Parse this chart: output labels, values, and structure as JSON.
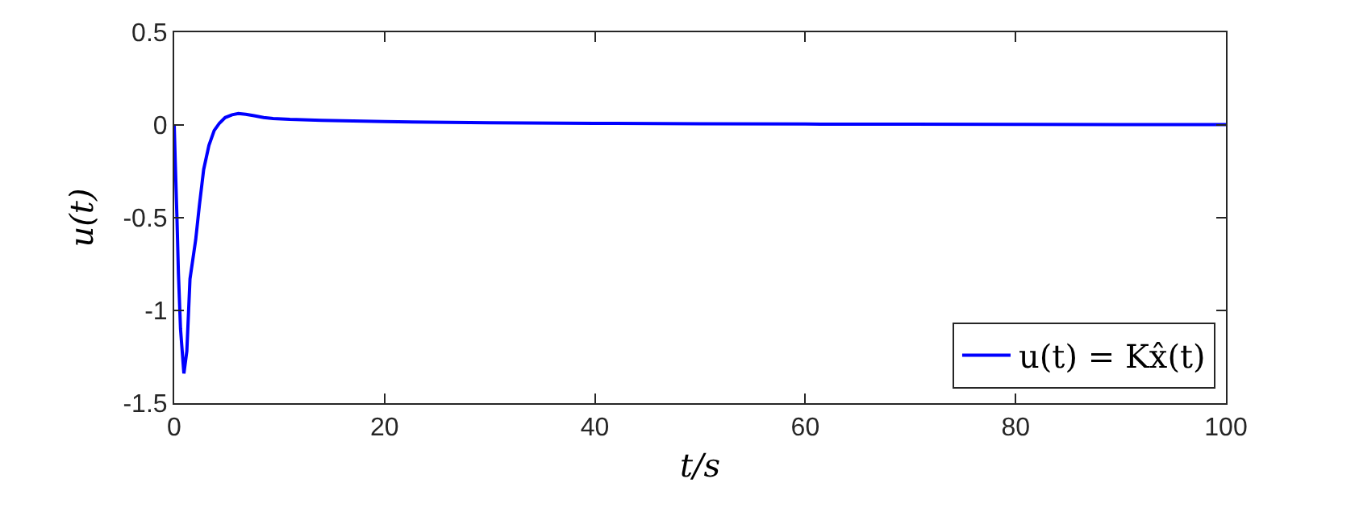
{
  "chart_data": {
    "type": "line",
    "xlabel": "t/s",
    "ylabel": "u(t)",
    "x": [
      0,
      0.1,
      0.26,
      0.4,
      0.6,
      0.92,
      1.2,
      1.5,
      2.04,
      2.4,
      2.8,
      3.3,
      3.8,
      4.3,
      4.84,
      5.5,
      6.1,
      6.8,
      7.6,
      8.5,
      9.4,
      11,
      14,
      20,
      30,
      40,
      50,
      60,
      70,
      80,
      90,
      100
    ],
    "series": [
      {
        "name": "u(t) = Kx̂(t)",
        "color": "#0000ff",
        "values": [
          0,
          -0.2,
          -0.5,
          -0.8,
          -1.1,
          -1.34,
          -1.22,
          -0.83,
          -0.62,
          -0.43,
          -0.24,
          -0.11,
          -0.03,
          0.01,
          0.04,
          0.055,
          0.062,
          0.058,
          0.05,
          0.04,
          0.035,
          0.03,
          0.025,
          0.018,
          0.012,
          0.009,
          0.007,
          0.005,
          0.004,
          0.003,
          0.002,
          0.002
        ]
      }
    ],
    "xlim": [
      0,
      100
    ],
    "xticks": [
      0,
      20,
      40,
      60,
      80,
      100
    ],
    "ylim": [
      -1.5,
      0.5
    ],
    "yticks": [
      {
        "value": -1.5,
        "label": "-1.5"
      },
      {
        "value": -1,
        "label": "-1"
      },
      {
        "value": -0.5,
        "label": "-0.5"
      },
      0,
      0.5
    ],
    "grid": false,
    "legend": "bottom right",
    "marker": "none",
    "line_style": "solid"
  }
}
